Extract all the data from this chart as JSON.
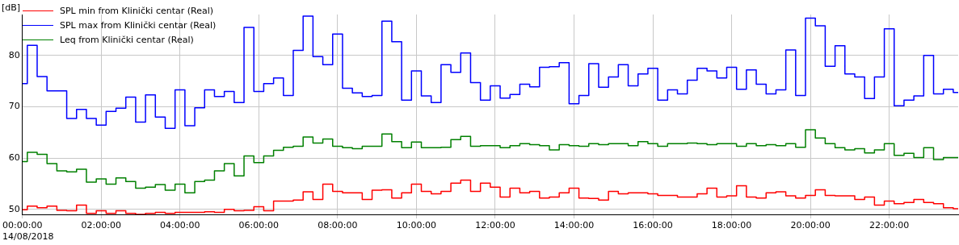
{
  "chart_data": {
    "type": "step",
    "ylabel": "[dB]",
    "annotations": [
      "14/08/2018"
    ],
    "x": [
      0,
      0.25,
      0.5,
      0.75,
      1,
      1.25,
      1.5,
      1.75,
      2,
      2.25,
      2.5,
      2.75,
      3,
      3.25,
      3.5,
      3.75,
      4,
      4.25,
      4.5,
      4.75,
      5,
      5.25,
      5.5,
      5.75,
      6,
      6.25,
      6.5,
      6.75,
      7,
      7.25,
      7.5,
      7.75,
      8,
      8.25,
      8.5,
      8.75,
      9,
      9.25,
      9.5,
      9.75,
      10,
      10.25,
      10.5,
      10.75,
      11,
      11.25,
      11.5,
      11.75,
      12,
      12.25,
      12.5,
      12.75,
      13,
      13.25,
      13.5,
      13.75,
      14,
      14.25,
      14.5,
      14.75,
      15,
      15.25,
      15.5,
      15.75,
      16,
      16.25,
      16.5,
      16.75,
      17,
      17.25,
      17.5,
      17.75,
      18,
      18.25,
      18.5,
      18.75,
      19,
      19.25,
      19.5,
      19.75,
      20,
      20.25,
      20.5,
      20.75,
      21,
      21.25,
      21.5,
      21.75,
      22,
      22.25,
      22.5,
      22.75,
      23,
      23.25,
      23.5,
      23.75
    ],
    "series": [
      {
        "name": "SPL min from Klinički centar (Real)",
        "color": "#ff0000",
        "values": [
          49.9,
          50.6,
          50.3,
          50.6,
          49.8,
          49.7,
          50.8,
          49.2,
          49.7,
          49.2,
          49.7,
          49.2,
          49.0,
          49.2,
          49.4,
          49.2,
          49.4,
          49.4,
          49.4,
          49.5,
          49.4,
          50.0,
          49.7,
          49.8,
          50.5,
          49.7,
          51.6,
          51.6,
          51.8,
          53.4,
          51.9,
          54.9,
          53.5,
          53.2,
          53.2,
          51.9,
          53.7,
          53.8,
          52.2,
          53.2,
          54.9,
          53.5,
          53.0,
          53.5,
          55.1,
          55.7,
          53.5,
          55.1,
          54.3,
          52.4,
          54.1,
          53.2,
          53.5,
          52.2,
          52.4,
          53.2,
          54.1,
          52.2,
          52.1,
          51.8,
          53.5,
          53.0,
          53.2,
          53.2,
          53.0,
          52.7,
          52.7,
          52.4,
          52.4,
          53.0,
          54.1,
          52.4,
          52.6,
          54.6,
          52.4,
          52.2,
          53.2,
          53.4,
          52.6,
          52.2,
          52.7,
          53.8,
          52.7,
          52.6,
          52.6,
          51.9,
          52.4,
          50.8,
          51.6,
          51.1,
          51.3,
          51.9,
          51.3,
          51.1,
          50.3,
          50.1
        ]
      },
      {
        "name": "SPL max from Klinički centar (Real)",
        "color": "#0000ff",
        "values": [
          74.5,
          82.0,
          75.9,
          73.1,
          73.1,
          67.7,
          69.5,
          67.7,
          66.4,
          69.1,
          69.7,
          71.9,
          67.0,
          72.3,
          68.0,
          65.8,
          73.3,
          66.3,
          69.8,
          73.3,
          72.0,
          73.0,
          70.8,
          85.5,
          73.0,
          74.5,
          75.6,
          72.2,
          81.0,
          87.7,
          79.8,
          78.2,
          84.2,
          73.6,
          72.7,
          72.0,
          72.2,
          86.7,
          82.7,
          71.3,
          77.0,
          72.1,
          70.8,
          78.2,
          76.7,
          80.5,
          74.7,
          71.3,
          74.1,
          71.7,
          72.4,
          74.4,
          73.9,
          77.7,
          77.8,
          78.6,
          70.6,
          72.2,
          78.4,
          73.8,
          75.8,
          78.2,
          74.1,
          76.4,
          77.5,
          71.3,
          73.3,
          72.5,
          75.2,
          77.5,
          77.0,
          75.6,
          77.7,
          73.4,
          77.2,
          74.4,
          72.5,
          73.3,
          81.1,
          72.2,
          87.3,
          85.8,
          77.9,
          81.9,
          76.4,
          75.8,
          71.6,
          75.8,
          85.2,
          70.2,
          71.3,
          72.1,
          80.0,
          72.5,
          73.4,
          72.8
        ]
      },
      {
        "name": "Leq from Klinički centar (Real)",
        "color": "#008000",
        "values": [
          59.3,
          61.1,
          60.7,
          58.9,
          57.5,
          57.3,
          57.8,
          55.3,
          55.9,
          54.9,
          56.1,
          55.4,
          54.1,
          54.3,
          54.8,
          53.7,
          54.9,
          53.2,
          55.4,
          55.7,
          57.5,
          58.9,
          56.5,
          60.4,
          59.1,
          60.4,
          61.5,
          62.1,
          62.3,
          64.1,
          62.9,
          63.7,
          62.3,
          62.0,
          61.8,
          62.3,
          62.3,
          64.7,
          63.2,
          62.0,
          63.1,
          62.0,
          62.0,
          62.1,
          63.6,
          64.2,
          62.3,
          62.4,
          62.4,
          62.0,
          62.4,
          62.8,
          62.6,
          62.4,
          61.6,
          62.6,
          62.4,
          62.3,
          62.8,
          62.6,
          62.8,
          62.8,
          62.4,
          63.2,
          62.8,
          62.3,
          62.8,
          62.8,
          62.9,
          62.8,
          62.6,
          62.8,
          62.8,
          62.3,
          62.8,
          62.4,
          62.6,
          62.4,
          62.8,
          62.1,
          65.5,
          63.9,
          62.8,
          62.0,
          61.6,
          61.8,
          61.0,
          61.6,
          62.8,
          60.5,
          60.9,
          60.1,
          62.0,
          59.7,
          60.1,
          60.1
        ]
      }
    ],
    "xlim": [
      0,
      23.75
    ],
    "xticks": [
      {
        "value": 0,
        "label": "00:00:00"
      },
      {
        "value": 2,
        "label": "02:00:00"
      },
      {
        "value": 4,
        "label": "04:00:00"
      },
      {
        "value": 6,
        "label": "06:00:00"
      },
      {
        "value": 8,
        "label": "08:00:00"
      },
      {
        "value": 10,
        "label": "10:00:00"
      },
      {
        "value": 12,
        "label": "12:00:00"
      },
      {
        "value": 14,
        "label": "14:00:00"
      },
      {
        "value": 16,
        "label": "16:00:00"
      },
      {
        "value": 18,
        "label": "18:00:00"
      },
      {
        "value": 20,
        "label": "20:00:00"
      },
      {
        "value": 22,
        "label": "22:00:00"
      }
    ],
    "ylim": [
      49,
      88
    ],
    "yticks": [
      50,
      60,
      70,
      80
    ],
    "grid": true,
    "legend": "top left",
    "line_style": "solid"
  }
}
